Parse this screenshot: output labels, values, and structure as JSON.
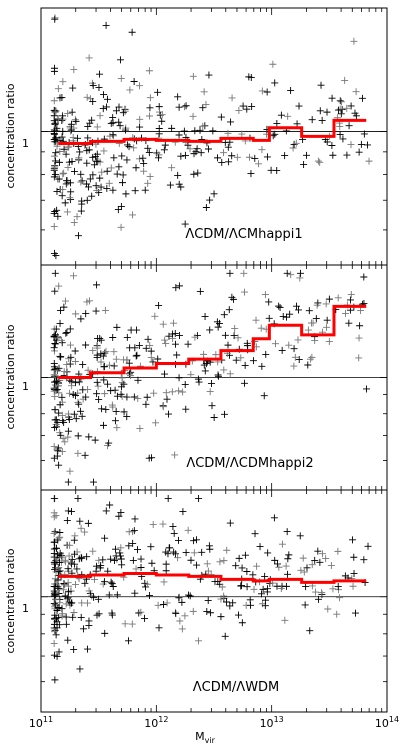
{
  "chart_data": {
    "type": "scatter",
    "x_scale": "log",
    "y_scale": "log",
    "xlim": [
      100000000000.0,
      100000000000000.0
    ],
    "x_ticks": [
      100000000000.0,
      1000000000000.0,
      10000000000000.0,
      100000000000000.0
    ],
    "x_tick_labels": [
      {
        "base": "10",
        "exp": "11"
      },
      {
        "base": "10",
        "exp": "12"
      },
      {
        "base": "10",
        "exp": "13"
      },
      {
        "base": "10",
        "exp": "14"
      }
    ],
    "xlabel": {
      "main": "M",
      "sub": "vir"
    },
    "ylabel": "concentration ratio",
    "y_tick_label": "1",
    "colors": {
      "points": "#000000",
      "median": "#ff0000",
      "reference": "#000000"
    },
    "panels": [
      {
        "label": "ΛCDM/ΛCMhappi1",
        "ylim": [
          0.5,
          1.9
        ],
        "reference_line": 1,
        "median_step": {
          "edges": [
            141000000000.0,
            269000000000.0,
            525000000000.0,
            1000000000000.0,
            1910000000000.0,
            3630000000000.0,
            6920000000000.0,
            9550000000000.0,
            18200000000000.0,
            34700000000000.0,
            66100000000000.0
          ],
          "values": [
            0.94,
            0.95,
            0.96,
            0.955,
            0.95,
            0.965,
            0.955,
            1.02,
            0.975,
            1.06
          ]
        },
        "points": {
          "count": 380,
          "seed": 11,
          "center": 0.92,
          "spread": 0.15,
          "xmin": 130000000000.0,
          "xmax": 70000000000000.0
        }
      },
      {
        "label": "ΛCDM/ΛCDMhappi2",
        "ylim": [
          0.5,
          2.0
        ],
        "reference_line": 1,
        "median_step": {
          "edges": [
            141000000000.0,
            269000000000.0,
            525000000000.0,
            1000000000000.0,
            1910000000000.0,
            3630000000000.0,
            6920000000000.0,
            9550000000000.0,
            18200000000000.0,
            34700000000000.0,
            66100000000000.0
          ],
          "values": [
            1.0,
            1.03,
            1.06,
            1.09,
            1.12,
            1.18,
            1.27,
            1.38,
            1.3,
            1.55
          ]
        },
        "points": {
          "count": 380,
          "seed": 23,
          "center": 1.02,
          "spread": 0.18,
          "xmin": 130000000000.0,
          "xmax": 70000000000000.0
        }
      },
      {
        "label": "ΛCDM/ΛWDM",
        "ylim": [
          0.5,
          1.9
        ],
        "reference_line": 1,
        "median_step": {
          "edges": [
            141000000000.0,
            269000000000.0,
            525000000000.0,
            1000000000000.0,
            1910000000000.0,
            3630000000000.0,
            6920000000000.0,
            9550000000000.0,
            18200000000000.0,
            34700000000000.0,
            66100000000000.0
          ],
          "values": [
            1.13,
            1.14,
            1.15,
            1.14,
            1.13,
            1.11,
            1.1,
            1.11,
            1.09,
            1.1
          ]
        },
        "points": {
          "count": 380,
          "seed": 37,
          "center": 1.12,
          "spread": 0.16,
          "xmin": 130000000000.0,
          "xmax": 70000000000000.0
        }
      }
    ]
  }
}
